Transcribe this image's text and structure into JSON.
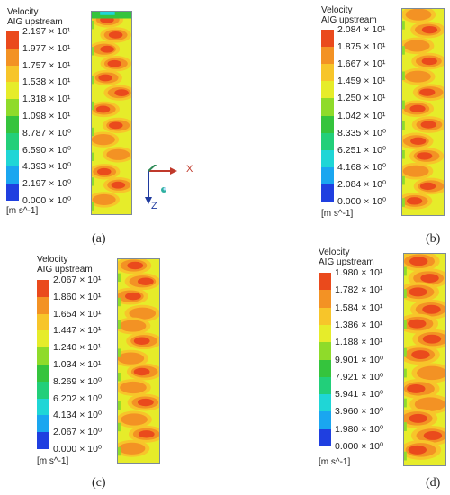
{
  "colors": [
    "#1f3fe0",
    "#1aa6f0",
    "#1fd6d6",
    "#22cf7a",
    "#35c43d",
    "#8fdb2a",
    "#e6ec2a",
    "#f7c52a",
    "#f39224",
    "#ea4a1c"
  ],
  "panels": [
    {
      "id": "a",
      "title_line1": "Velocity",
      "title_line2": "AIG upstream",
      "ticks": [
        "2.197 × 10¹",
        "1.977 × 10¹",
        "1.757 × 10¹",
        "1.538 × 10¹",
        "1.318 × 10¹",
        "1.098 × 10¹",
        "8.787 × 10⁰",
        "6.590 × 10⁰",
        "4.393 × 10⁰",
        "2.197 × 10⁰",
        "0.000 × 10⁰"
      ],
      "unit": "[m s^-1]",
      "label": "(a)",
      "hotness": 0.45
    },
    {
      "id": "b",
      "title_line1": "Velocity",
      "title_line2": "AIG upstream",
      "ticks": [
        "2.084 × 10¹",
        "1.875 × 10¹",
        "1.667 × 10¹",
        "1.459 × 10¹",
        "1.250 × 10¹",
        "1.042 × 10¹",
        "8.335 × 10⁰",
        "6.251 × 10⁰",
        "4.168 × 10⁰",
        "2.084 × 10⁰",
        "0.000 × 10⁰"
      ],
      "unit": "[m s^-1]",
      "label": "(b)",
      "hotness": 0.55
    },
    {
      "id": "c",
      "title_line1": "Velocity",
      "title_line2": "AIG upstream",
      "ticks": [
        "2.067 × 10¹",
        "1.860 × 10¹",
        "1.654 × 10¹",
        "1.447 × 10¹",
        "1.240 × 10¹",
        "1.034 × 10¹",
        "8.269 × 10⁰",
        "6.202 × 10⁰",
        "4.134 × 10⁰",
        "2.067 × 10⁰",
        "0.000 × 10⁰"
      ],
      "unit": "[m s^-1]",
      "label": "(c)",
      "hotness": 0.6
    },
    {
      "id": "d",
      "title_line1": "Velocity",
      "title_line2": "AIG upstream",
      "ticks": [
        "1.980 × 10¹",
        "1.782 × 10¹",
        "1.584 × 10¹",
        "1.386 × 10¹",
        "1.188 × 10¹",
        "9.901 × 10⁰",
        "7.921 × 10⁰",
        "5.941 × 10⁰",
        "3.960 × 10⁰",
        "1.980 × 10⁰",
        "0.000 × 10⁰"
      ],
      "unit": "[m s^-1]",
      "label": "(d)",
      "hotness": 0.85
    }
  ],
  "axes": {
    "x_label": "X",
    "z_label": "Z"
  }
}
